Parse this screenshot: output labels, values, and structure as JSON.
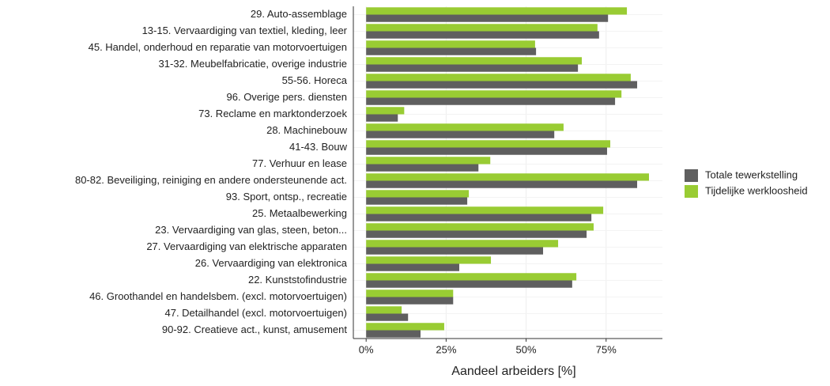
{
  "chart_data": {
    "type": "bar",
    "orientation": "horizontal",
    "x_label": "Aandeel arbeiders [%]",
    "categories": [
      "29. Auto-assemblage",
      "13-15. Vervaardiging van textiel, kleding, leer",
      "45. Handel, onderhoud en reparatie van motorvoertuigen",
      "31-32. Meubelfabricatie, overige industrie",
      "55-56. Horeca",
      "96. Overige pers. diensten",
      "73. Reclame en marktonderzoek",
      "28. Machinebouw",
      "41-43. Bouw",
      "77. Verhuur en lease",
      "80-82. Beveiliging, reiniging en andere ondersteunende act.",
      "93. Sport, ontsp., recreatie",
      "25. Metaalbewerking",
      "23. Vervaardiging van glas, steen, beton...",
      "27. Vervaardiging van elektrische apparaten",
      "26. Vervaardiging van elektronica",
      "22. Kunststofindustrie",
      "46. Groothandel en handelsbem. (excl. motorvoertuigen)",
      "47. Detailhandel (excl. motorvoertuigen)",
      "90-92. Creatieve act., kunst, amusement"
    ],
    "series": [
      {
        "name": "Totale tewerkstelling",
        "color": "#5f5f5f",
        "values": [
          75.6,
          72.8,
          53.1,
          66.2,
          84.7,
          77.8,
          9.9,
          58.8,
          75.3,
          35.1,
          84.7,
          31.6,
          70.4,
          68.9,
          55.3,
          29.1,
          64.4,
          27.2,
          13.1,
          17.0
        ]
      },
      {
        "name": "Tijdelijke werkloosheid",
        "color": "#99cc33",
        "values": [
          81.5,
          72.3,
          52.8,
          67.4,
          82.7,
          79.8,
          11.9,
          61.7,
          76.3,
          38.8,
          88.4,
          32.1,
          74.1,
          71.1,
          60.0,
          39.0,
          65.7,
          27.2,
          11.1,
          24.4
        ]
      }
    ],
    "xlim": [
      -4,
      92.6
    ],
    "xticks": [
      {
        "value": 0,
        "label": "0%"
      },
      {
        "value": 25,
        "label": "25%"
      },
      {
        "value": 50,
        "label": "50%"
      },
      {
        "value": 75,
        "label": "75%"
      }
    ],
    "grid": true,
    "legend": "right"
  }
}
